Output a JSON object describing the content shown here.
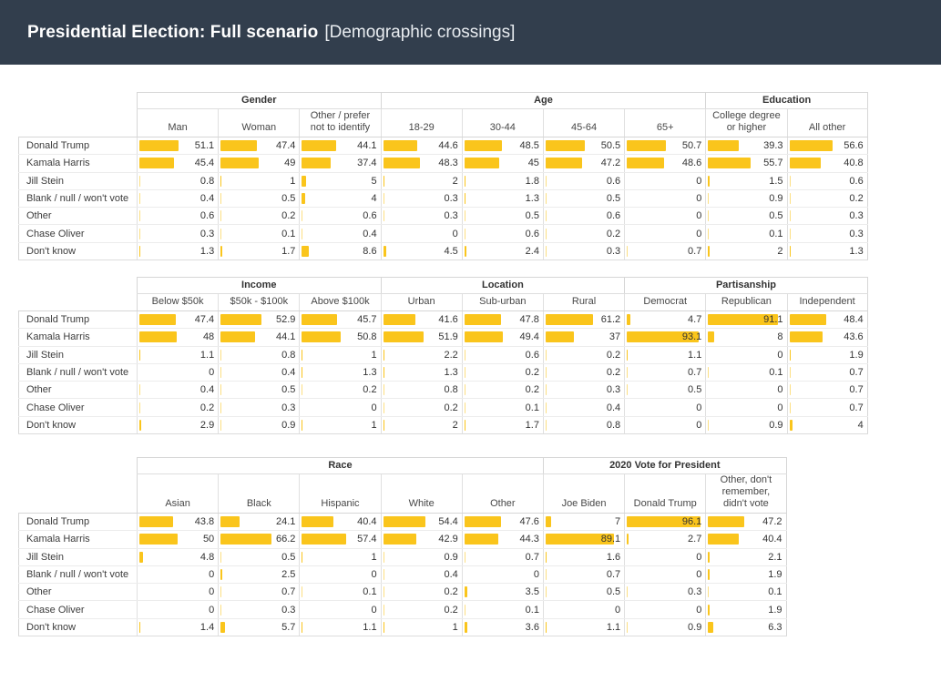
{
  "header": {
    "title_main": "Presidential Election: Full scenario",
    "title_suffix": "[Demographic crossings]"
  },
  "colors": {
    "titlebar_background": "#323e4d",
    "bar_fill": "#fac51c"
  },
  "row_labels": [
    "Donald Trump",
    "Kamala Harris",
    "Jill Stein",
    "Blank / null / won't vote",
    "Other",
    "Chase Oliver",
    "Don't know"
  ],
  "tables": [
    {
      "name": "gender-age-education",
      "groups": [
        {
          "label": "Gender",
          "columns": [
            {
              "label": "Man",
              "values": [
                51.1,
                45.4,
                0.8,
                0.4,
                0.6,
                0.3,
                1.3
              ]
            },
            {
              "label": "Woman",
              "values": [
                47.4,
                49,
                1,
                0.5,
                0.2,
                0.1,
                1.7
              ]
            },
            {
              "label": "Other / prefer not to identify",
              "values": [
                44.1,
                37.4,
                5,
                4,
                0.6,
                0.4,
                8.6
              ]
            }
          ]
        },
        {
          "label": "Age",
          "columns": [
            {
              "label": "18-29",
              "values": [
                44.6,
                48.3,
                2,
                0.3,
                0.3,
                0,
                4.5
              ]
            },
            {
              "label": "30-44",
              "values": [
                48.5,
                45,
                1.8,
                1.3,
                0.5,
                0.6,
                2.4
              ]
            },
            {
              "label": "45-64",
              "values": [
                50.5,
                47.2,
                0.6,
                0.5,
                0.6,
                0.2,
                0.3
              ]
            },
            {
              "label": "65+",
              "values": [
                50.7,
                48.6,
                0,
                0,
                0,
                0,
                0.7
              ]
            }
          ]
        },
        {
          "label": "Education",
          "columns": [
            {
              "label": "College degree or higher",
              "values": [
                39.3,
                55.7,
                1.5,
                0.9,
                0.5,
                0.1,
                2
              ]
            },
            {
              "label": "All other",
              "values": [
                56.6,
                40.8,
                0.6,
                0.2,
                0.3,
                0.3,
                1.3
              ]
            }
          ]
        }
      ]
    },
    {
      "name": "income-location-partisanship",
      "groups": [
        {
          "label": "Income",
          "columns": [
            {
              "label": "Below $50k",
              "values": [
                47.4,
                48,
                1.1,
                0,
                0.4,
                0.2,
                2.9
              ]
            },
            {
              "label": "$50k - $100k",
              "values": [
                52.9,
                44.1,
                0.8,
                0.4,
                0.5,
                0.3,
                0.9
              ]
            },
            {
              "label": "Above $100k",
              "values": [
                45.7,
                50.8,
                1,
                1.3,
                0.2,
                0,
                1
              ]
            }
          ]
        },
        {
          "label": "Location",
          "columns": [
            {
              "label": "Urban",
              "values": [
                41.6,
                51.9,
                2.2,
                1.3,
                0.8,
                0.2,
                2
              ]
            },
            {
              "label": "Sub-urban",
              "values": [
                47.8,
                49.4,
                0.6,
                0.2,
                0.2,
                0.1,
                1.7
              ]
            },
            {
              "label": "Rural",
              "values": [
                61.2,
                37,
                0.2,
                0.2,
                0.3,
                0.4,
                0.8
              ]
            }
          ]
        },
        {
          "label": "Partisanship",
          "columns": [
            {
              "label": "Democrat",
              "values": [
                4.7,
                93.1,
                1.1,
                0.7,
                0.5,
                0,
                0
              ]
            },
            {
              "label": "Republican",
              "values": [
                91.1,
                8,
                0,
                0.1,
                0,
                0,
                0.9
              ]
            },
            {
              "label": "Independent",
              "values": [
                48.4,
                43.6,
                1.9,
                0.7,
                0.7,
                0.7,
                4
              ]
            }
          ]
        }
      ]
    },
    {
      "name": "race-2020vote",
      "groups": [
        {
          "label": "Race",
          "columns": [
            {
              "label": "Asian",
              "values": [
                43.8,
                50,
                4.8,
                0,
                0,
                0,
                1.4
              ]
            },
            {
              "label": "Black",
              "values": [
                24.1,
                66.2,
                0.5,
                2.5,
                0.7,
                0.3,
                5.7
              ]
            },
            {
              "label": "Hispanic",
              "values": [
                40.4,
                57.4,
                1,
                0,
                0.1,
                0,
                1.1
              ]
            },
            {
              "label": "White",
              "values": [
                54.4,
                42.9,
                0.9,
                0.4,
                0.2,
                0.2,
                1
              ]
            },
            {
              "label": "Other",
              "values": [
                47.6,
                44.3,
                0.7,
                0,
                3.5,
                0.1,
                3.6
              ]
            }
          ]
        },
        {
          "label": "2020 Vote for President",
          "columns": [
            {
              "label": "Joe Biden",
              "values": [
                7,
                89.1,
                1.6,
                0.7,
                0.5,
                0,
                1.1
              ]
            },
            {
              "label": "Donald Trump",
              "values": [
                96.1,
                2.7,
                0,
                0,
                0.3,
                0,
                0.9
              ]
            },
            {
              "label": "Other, don't remember, didn't vote",
              "values": [
                47.2,
                40.4,
                2.1,
                1.9,
                0.1,
                1.9,
                6.3
              ]
            }
          ]
        }
      ]
    }
  ]
}
